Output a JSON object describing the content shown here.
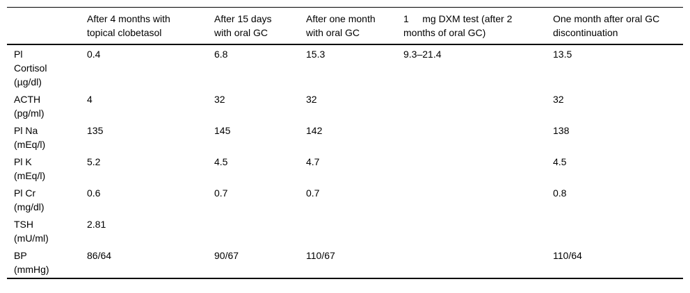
{
  "table": {
    "columns": [
      {
        "label": ""
      },
      {
        "label": "After 4 months with\ntopical clobetasol"
      },
      {
        "label": "After 15 days\nwith oral GC"
      },
      {
        "label": "After one month\nwith oral GC"
      },
      {
        "label": "1     mg DXM test (after 2\nmonths of oral GC)"
      },
      {
        "label": "One month after oral GC\ndiscontinuation"
      }
    ],
    "rows": [
      {
        "label": "Pl\nCortisol\n(µg/dl)",
        "values": [
          "0.4",
          "6.8",
          "15.3",
          "9.3–21.4",
          "13.5"
        ]
      },
      {
        "label": "ACTH\n(pg/ml)",
        "values": [
          "4",
          "32",
          "32",
          "",
          "32"
        ]
      },
      {
        "label": "Pl Na\n(mEq/l)",
        "values": [
          "135",
          "145",
          "142",
          "",
          "138"
        ]
      },
      {
        "label": "Pl K\n(mEq/l)",
        "values": [
          "5.2",
          "4.5",
          "4.7",
          "",
          "4.5"
        ]
      },
      {
        "label": "Pl Cr\n(mg/dl)",
        "values": [
          "0.6",
          "0.7",
          "0.7",
          "",
          "0.8"
        ]
      },
      {
        "label": "TSH\n(mU/ml)",
        "values": [
          "2.81",
          "",
          "",
          "",
          ""
        ]
      },
      {
        "label": "BP\n(mmHg)",
        "values": [
          "86/64",
          "90/67",
          "110/67",
          "",
          "110/64"
        ]
      }
    ]
  }
}
